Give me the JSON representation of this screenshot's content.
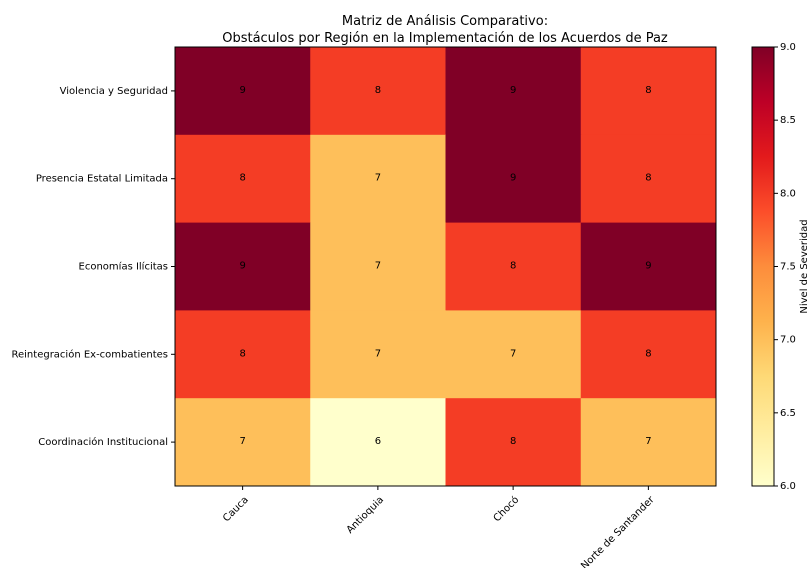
{
  "chart_data": {
    "type": "heatmap",
    "title_lines": [
      "Matriz de Análisis Comparativo:",
      "Obstáculos por Región en la Implementación de los Acuerdos de Paz"
    ],
    "x_categories": [
      "Cauca",
      "Antioquia",
      "Chocó",
      "Norte de Santander"
    ],
    "y_categories": [
      "Violencia y Seguridad",
      "Presencia Estatal Limitada",
      "Economías Ilícitas",
      "Reintegración Ex-combatientes",
      "Coordinación Institucional"
    ],
    "values": [
      [
        9,
        8,
        9,
        8
      ],
      [
        8,
        7,
        9,
        8
      ],
      [
        9,
        7,
        8,
        9
      ],
      [
        8,
        7,
        7,
        8
      ],
      [
        7,
        6,
        8,
        7
      ]
    ],
    "value_labels": [
      [
        "9",
        "8",
        "9",
        "8"
      ],
      [
        "8",
        "7",
        "9",
        "8"
      ],
      [
        "9",
        "7",
        "8",
        "9"
      ],
      [
        "8",
        "7",
        "7",
        "8"
      ],
      [
        "7",
        "6",
        "8",
        "7"
      ]
    ],
    "colorbar": {
      "label": "Nivel de Severidad",
      "range": [
        6.0,
        9.0
      ],
      "ticks": [
        6.0,
        6.5,
        7.0,
        7.5,
        8.0,
        8.5,
        9.0
      ],
      "tick_labels": [
        "6.0",
        "6.5",
        "7.0",
        "7.5",
        "8.0",
        "8.5",
        "9.0"
      ]
    },
    "colors": {
      "6": "#ffffcc",
      "7": "#febf5a",
      "8": "#f43d25",
      "9": "#800026"
    },
    "colormap": "YlOrRd"
  }
}
